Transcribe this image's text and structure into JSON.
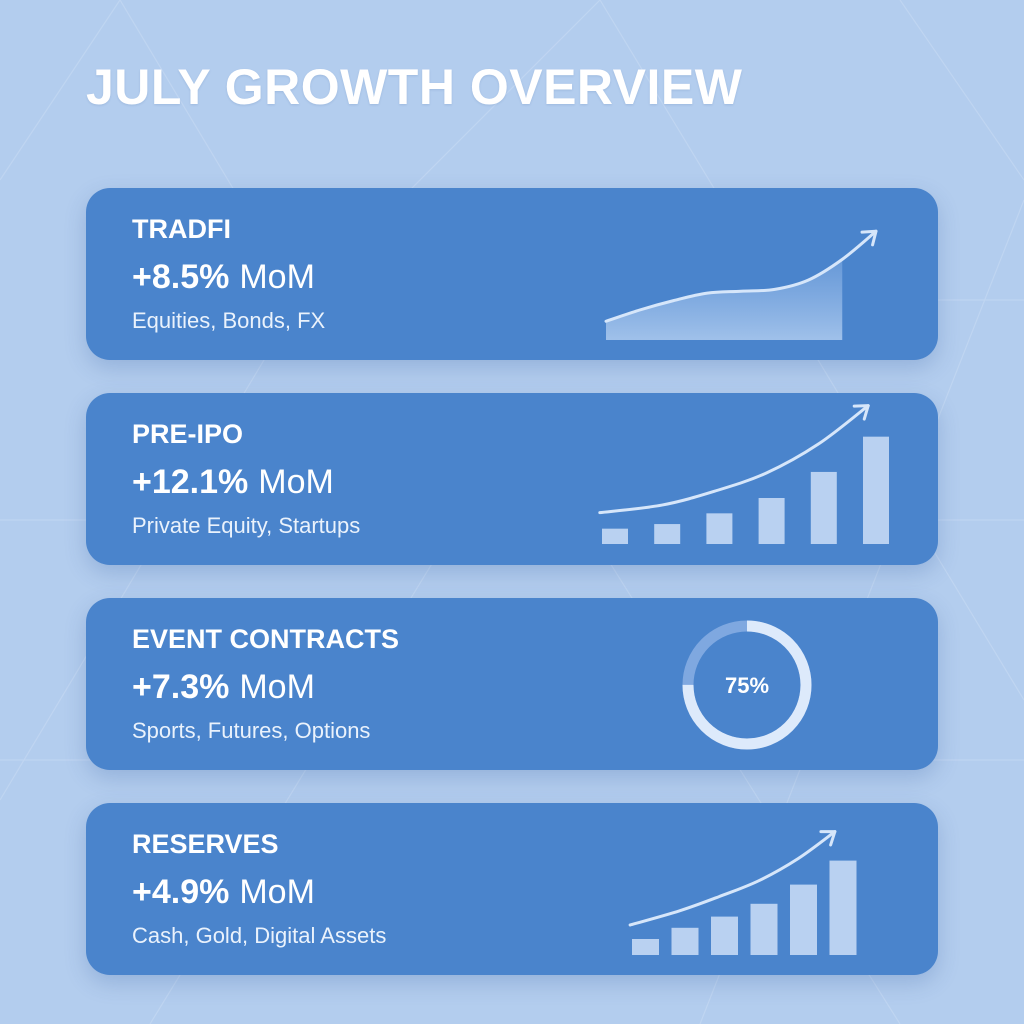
{
  "title": "JULY GROWTH OVERVIEW",
  "colors": {
    "background": "#b3cdee",
    "card": "#4a84cc",
    "text": "#ffffff"
  },
  "cards": [
    {
      "title": "TRADFI",
      "growth": "+8.5%",
      "unit": "MoM",
      "subtitle": "Equities, Bonds, FX"
    },
    {
      "title": "PRE-IPO",
      "growth": "+12.1%",
      "unit": "MoM",
      "subtitle": "Private Equity, Startups"
    },
    {
      "title": "EVENT CONTRACTS",
      "growth": "+7.3%",
      "unit": "MoM",
      "subtitle": "Sports, Futures, Options"
    },
    {
      "title": "RESERVES",
      "growth": "+4.9%",
      "unit": "MoM",
      "subtitle": "Cash, Gold, Digital Assets"
    }
  ],
  "chart_data": [
    {
      "type": "area",
      "values": [
        1.0,
        1.6,
        2.1,
        2.5,
        2.6,
        2.7,
        3.2,
        4.3,
        5.8
      ],
      "ylim": [
        0,
        8
      ],
      "trend_arrow": true
    },
    {
      "type": "bar",
      "values": [
        1.0,
        1.3,
        2.0,
        3.0,
        4.7,
        7.0
      ],
      "ylim": [
        0,
        7.5
      ],
      "trend_arrow": true
    },
    {
      "type": "pie",
      "values": [
        75
      ],
      "labels": [
        "75%"
      ],
      "max": 100
    },
    {
      "type": "bar",
      "values": [
        1.0,
        1.7,
        2.4,
        3.2,
        4.4,
        5.9
      ],
      "ylim": [
        0,
        6.5
      ],
      "trend_arrow": true
    }
  ]
}
